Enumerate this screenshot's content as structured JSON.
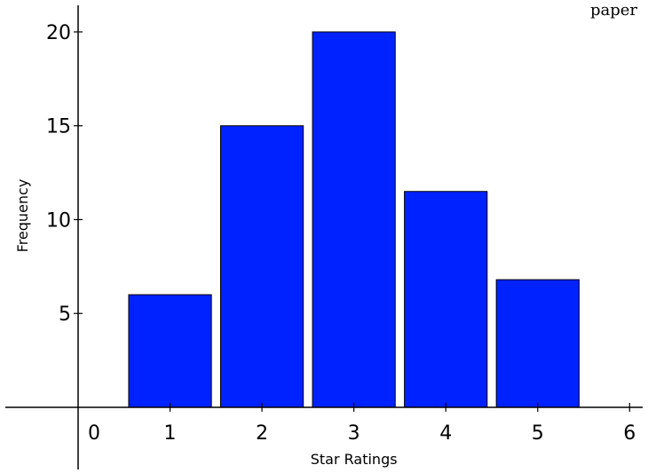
{
  "top_text": "paper",
  "chart_data": {
    "type": "bar",
    "categories": [
      "1",
      "2",
      "3",
      "4",
      "5"
    ],
    "values": [
      6,
      15,
      20,
      11.5,
      6.8
    ],
    "x_positions": [
      1,
      2,
      3,
      4,
      5
    ],
    "bar_width": 0.9,
    "title": "",
    "xlabel": "Star Ratings",
    "ylabel": "Frequency",
    "xlim": [
      -0.85,
      6.2
    ],
    "ylim": [
      -3.5,
      21.7
    ],
    "x_ticks": [
      0,
      1,
      2,
      3,
      4,
      5,
      6
    ],
    "y_ticks": [
      5,
      10,
      15,
      20
    ],
    "bar_color": "#0022ff",
    "grid": false,
    "legend": "none"
  }
}
